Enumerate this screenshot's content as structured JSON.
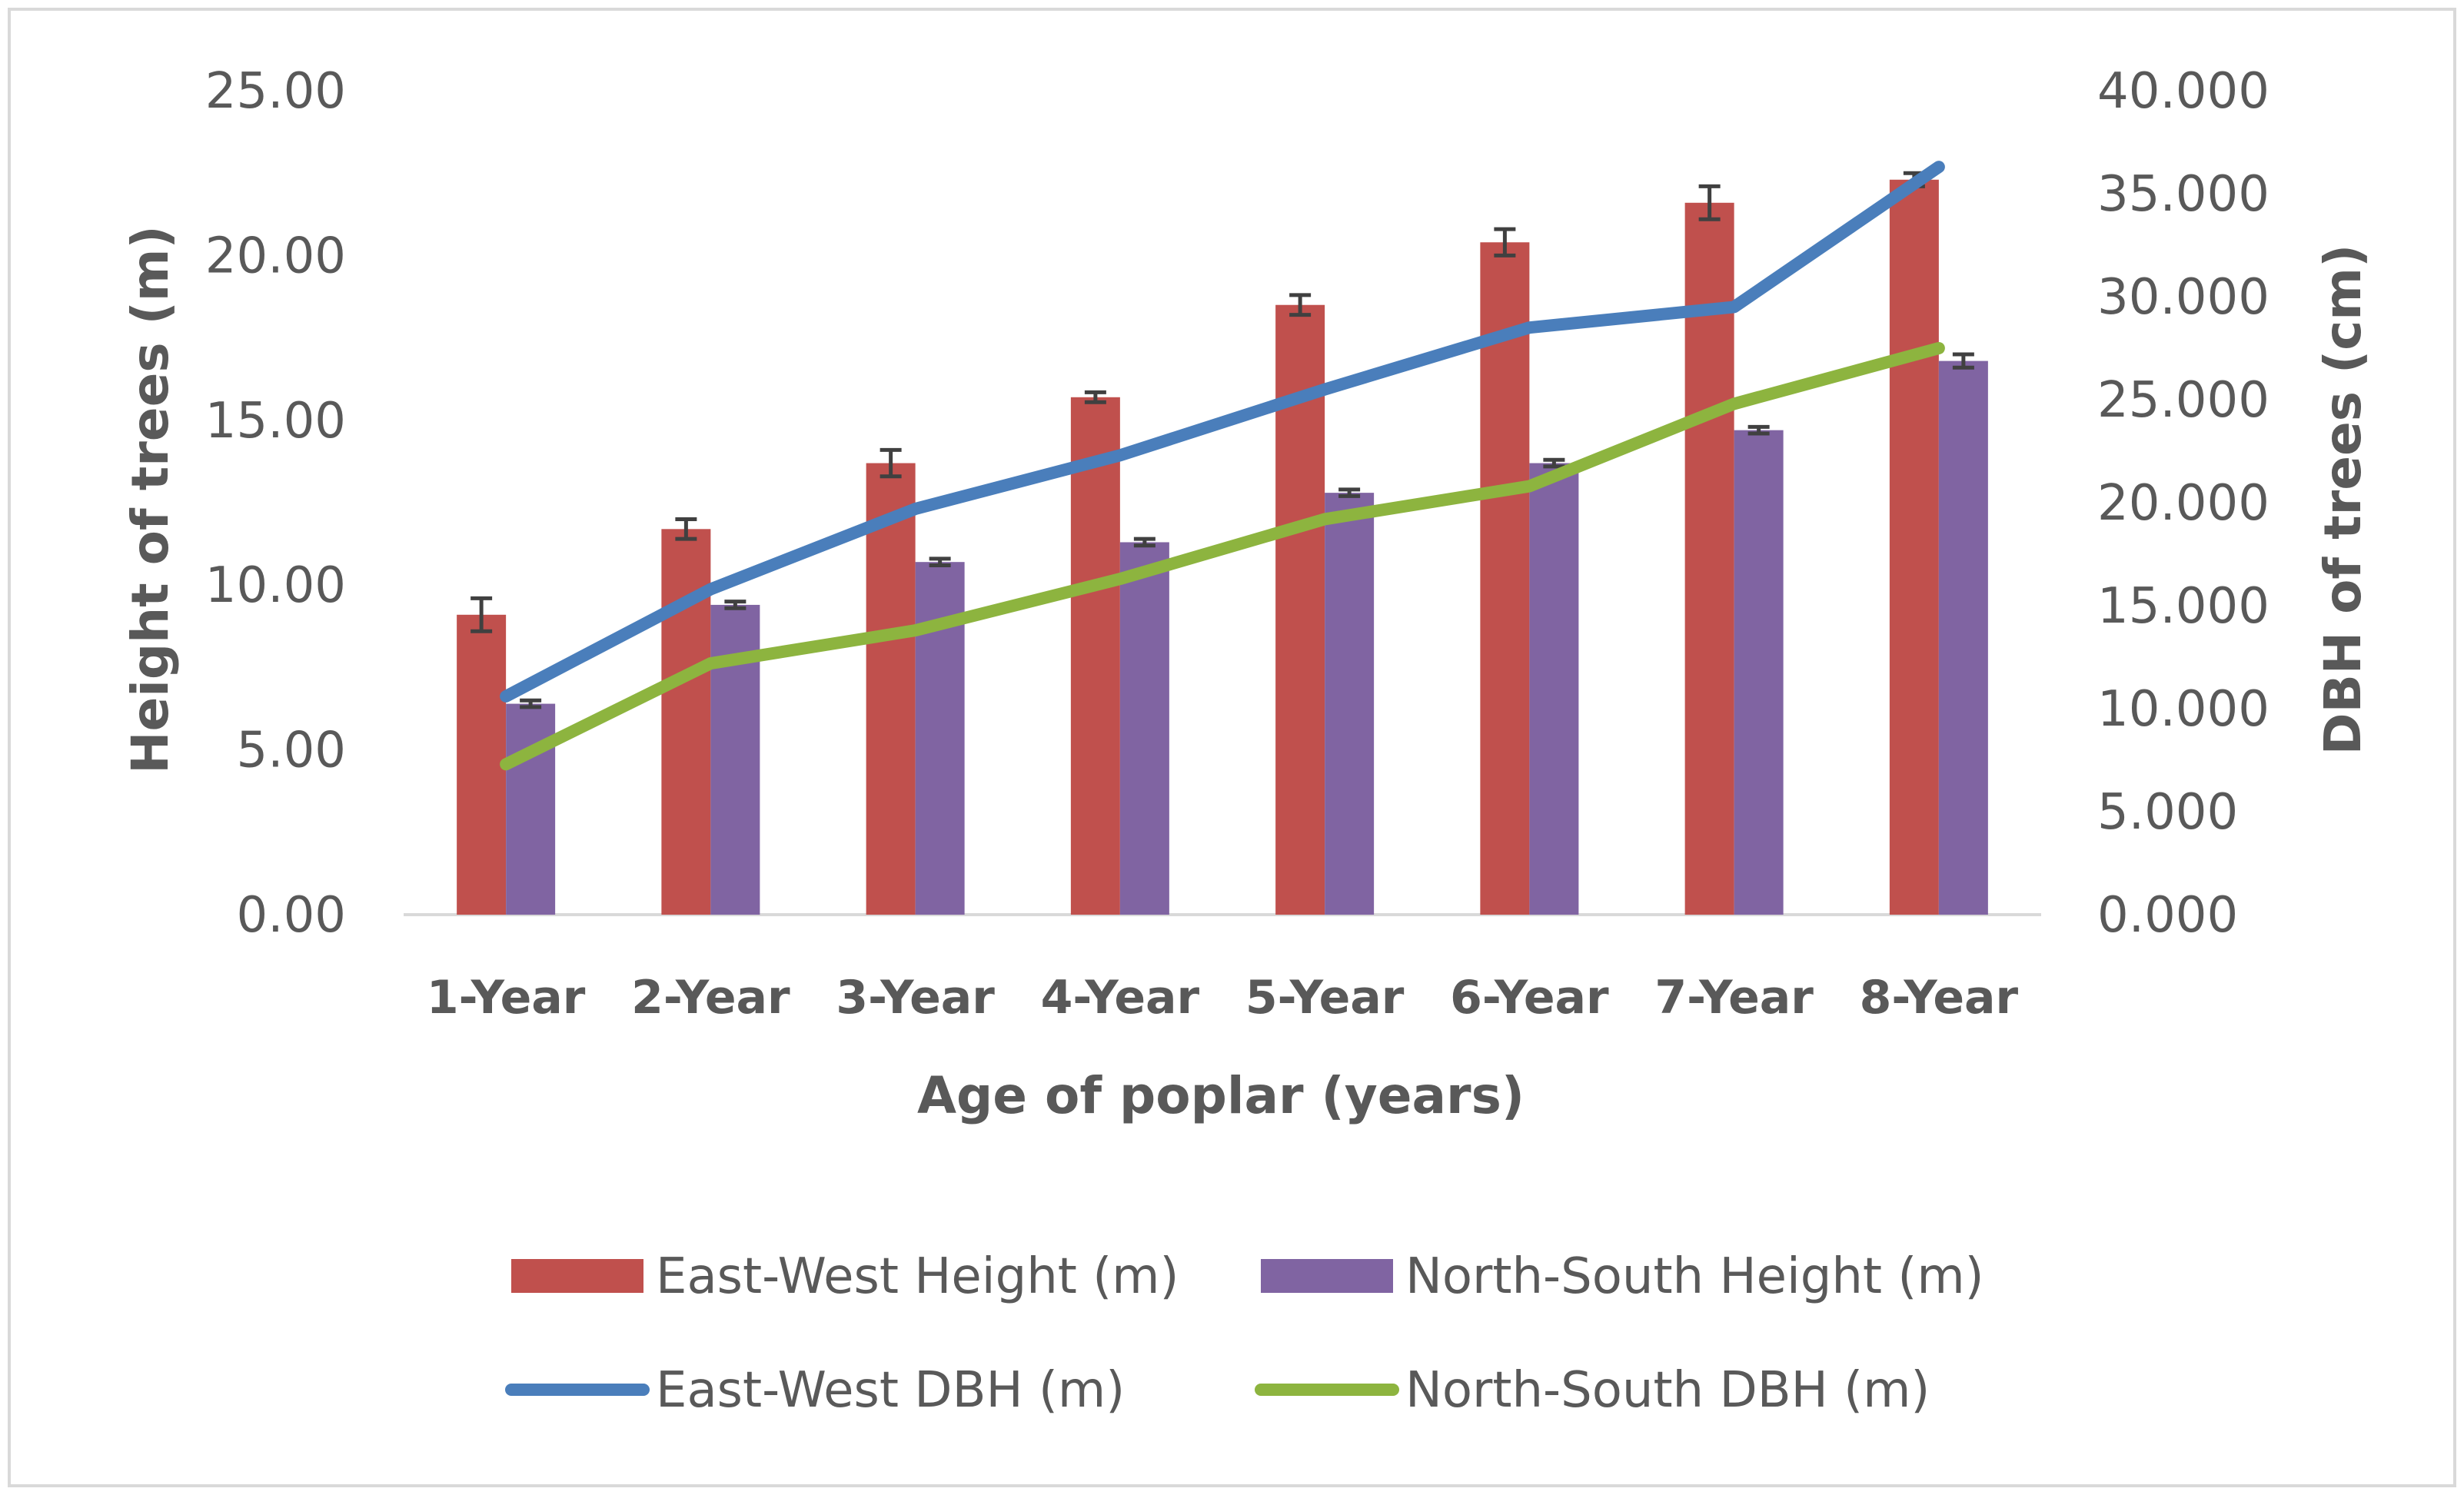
{
  "chart_data": {
    "type": "bar",
    "categories": [
      "1-Year",
      "2-Year",
      "3-Year",
      "4-Year",
      "5-Year",
      "6-Year",
      "7-Year",
      "8-Year"
    ],
    "xlabel": "Age of poplar (years)",
    "ylabel": "Height of trees (m)",
    "y2label": "DBH of trees (cm)",
    "ylim": [
      0,
      25
    ],
    "y2lim": [
      0,
      40
    ],
    "yticks": [
      "0.00",
      "5.00",
      "10.00",
      "15.00",
      "20.00",
      "25.00"
    ],
    "y2ticks": [
      "0.000",
      "5.000",
      "10.000",
      "15.000",
      "20.000",
      "25.000",
      "30.000",
      "35.000",
      "40.000"
    ],
    "legend_position": "bottom",
    "grid": false,
    "series": [
      {
        "name": "East-West Height (m)",
        "type": "bar",
        "axis": "left",
        "color": "#c0504d",
        "values": [
          9.1,
          11.7,
          13.7,
          15.7,
          18.5,
          20.4,
          21.6,
          22.3
        ],
        "errors": [
          0.5,
          0.3,
          0.4,
          0.15,
          0.3,
          0.4,
          0.5,
          0.2
        ]
      },
      {
        "name": "North-South Height (m)",
        "type": "bar",
        "axis": "left",
        "color": "#8064a2",
        "values": [
          6.4,
          9.4,
          10.7,
          11.3,
          12.8,
          13.7,
          14.7,
          16.8
        ],
        "errors": [
          0.1,
          0.1,
          0.1,
          0.1,
          0.1,
          0.1,
          0.1,
          0.2
        ]
      },
      {
        "name": "East-West DBH (m)",
        "type": "line",
        "axis": "right",
        "color": "#4a7ebb",
        "values": [
          10.6,
          15.8,
          19.7,
          22.3,
          25.5,
          28.5,
          29.5,
          36.3
        ]
      },
      {
        "name": "North-South DBH (m)",
        "type": "line",
        "axis": "right",
        "color": "#8db43f",
        "values": [
          7.3,
          12.2,
          13.8,
          16.3,
          19.2,
          20.8,
          24.8,
          27.5
        ]
      }
    ]
  }
}
